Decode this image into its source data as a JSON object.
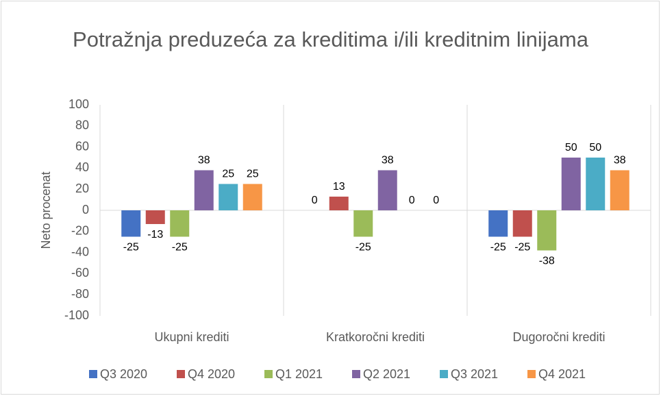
{
  "chart_data": {
    "type": "bar",
    "title": "Potražnja preduzeća za kreditima i/ili kreditnim linijama",
    "y_label": "Neto procenat",
    "categories": [
      "Ukupni krediti",
      "Kratkoročni krediti",
      "Dugoročni krediti"
    ],
    "series": [
      {
        "name": "Q3 2020",
        "color": "#4472c4",
        "values": [
          -25,
          0,
          -25
        ]
      },
      {
        "name": "Q4 2020",
        "color": "#c0504d",
        "values": [
          -13,
          13,
          -25
        ]
      },
      {
        "name": "Q1 2021",
        "color": "#9bbb59",
        "values": [
          -25,
          -25,
          -38
        ]
      },
      {
        "name": "Q2 2021",
        "color": "#8064a2",
        "values": [
          38,
          38,
          50
        ]
      },
      {
        "name": "Q3 2021",
        "color": "#4bacc6",
        "values": [
          25,
          0,
          50
        ]
      },
      {
        "name": "Q4 2021",
        "color": "#f79646",
        "values": [
          25,
          0,
          38
        ]
      }
    ],
    "ylim": [
      -100,
      100
    ],
    "yticks": [
      -100,
      -80,
      -60,
      -40,
      -20,
      0,
      20,
      40,
      60,
      80,
      100
    ],
    "grid": false,
    "legend": "bottom"
  }
}
